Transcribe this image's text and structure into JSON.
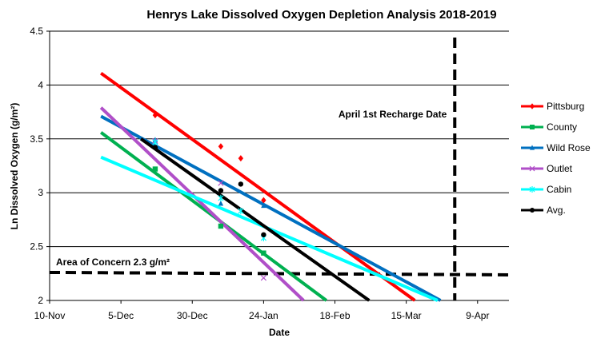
{
  "chart_data": {
    "type": "scatter",
    "title": "Henrys Lake Dissolved Oxygen Depletion Analysis 2018-2019",
    "xlabel": "Date",
    "ylabel": "Ln Dissolved Oxygen (g/m²)",
    "xlim": [
      "2018-11-10",
      "2019-04-20"
    ],
    "ylim": [
      2,
      4.5
    ],
    "x_ticks": [
      "2018-11-10",
      "2018-12-05",
      "2018-12-30",
      "2019-01-24",
      "2019-02-18",
      "2019-03-15",
      "2019-04-09"
    ],
    "x_tick_labels": [
      "10-Nov",
      "5-Dec",
      "30-Dec",
      "24-Jan",
      "18-Feb",
      "15-Mar",
      "9-Apr"
    ],
    "y_ticks": [
      2,
      2.5,
      3,
      3.5,
      4,
      4.5
    ],
    "y_tick_labels": [
      "2",
      "2.5",
      "3",
      "3.5",
      "4",
      "4.5"
    ],
    "grid": "horizontal",
    "legend_position": "right",
    "series": [
      {
        "name": "Pittsburg",
        "color": "#ff0000",
        "marker": "diamond",
        "points": [
          [
            "2018-12-17",
            3.72
          ],
          [
            "2019-01-09",
            3.43
          ],
          [
            "2019-01-16",
            3.32
          ],
          [
            "2019-01-24",
            2.93
          ]
        ],
        "trend": [
          [
            "2018-11-28",
            4.11
          ],
          [
            "2019-03-18",
            2.0
          ]
        ]
      },
      {
        "name": "County",
        "color": "#00b050",
        "marker": "square",
        "points": [
          [
            "2018-12-17",
            3.22
          ],
          [
            "2019-01-09",
            2.69
          ],
          [
            "2019-01-24",
            2.44
          ]
        ],
        "trend": [
          [
            "2018-11-28",
            3.56
          ],
          [
            "2019-02-15",
            2.0
          ]
        ]
      },
      {
        "name": "Wild Rose",
        "color": "#0070c0",
        "marker": "triangle",
        "points": [
          [
            "2018-12-17",
            3.49
          ],
          [
            "2019-01-09",
            2.9
          ],
          [
            "2019-01-24",
            2.88
          ]
        ],
        "trend": [
          [
            "2018-11-28",
            3.71
          ],
          [
            "2019-03-27",
            2.0
          ]
        ]
      },
      {
        "name": "Outlet",
        "color": "#b04fc8",
        "marker": "x",
        "points": [
          [
            "2018-12-17",
            3.48
          ],
          [
            "2019-01-09",
            3.09
          ],
          [
            "2019-01-24",
            2.21
          ]
        ],
        "trend": [
          [
            "2018-11-28",
            3.79
          ],
          [
            "2019-02-07",
            2.0
          ]
        ]
      },
      {
        "name": "Cabin",
        "color": "#00ffff",
        "marker": "star",
        "points": [
          [
            "2018-12-17",
            3.47
          ],
          [
            "2019-01-09",
            2.95
          ],
          [
            "2019-01-16",
            2.83
          ],
          [
            "2019-01-24",
            2.58
          ]
        ],
        "trend": [
          [
            "2018-11-28",
            3.33
          ],
          [
            "2019-03-26",
            2.0
          ]
        ]
      },
      {
        "name": "Avg.",
        "color": "#000000",
        "marker": "circle",
        "points": [
          [
            "2018-12-17",
            3.42
          ],
          [
            "2019-01-09",
            3.02
          ],
          [
            "2019-01-16",
            3.08
          ],
          [
            "2019-01-24",
            2.61
          ]
        ],
        "trend": [
          [
            "2018-12-12",
            3.5
          ],
          [
            "2019-03-02",
            2.0
          ]
        ]
      }
    ],
    "reference_lines": [
      {
        "type": "horizontal",
        "value": 2.26,
        "style": "dashed",
        "color": "#000000",
        "label": "Area of Concern 2.3 g/m²"
      },
      {
        "type": "vertical",
        "value": "2019-04-01",
        "style": "dashed",
        "color": "#000000",
        "label": "April 1st Recharge Date"
      }
    ]
  }
}
